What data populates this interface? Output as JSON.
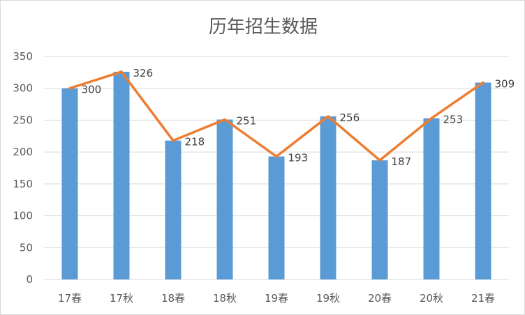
{
  "chart_data": {
    "type": "bar",
    "title": "历年招生数据",
    "categories": [
      "17春",
      "17秋",
      "18春",
      "18秋",
      "19春",
      "19秋",
      "20春",
      "20秋",
      "21春"
    ],
    "series": [
      {
        "type": "bar",
        "values": [
          300,
          326,
          218,
          251,
          193,
          256,
          187,
          253,
          309
        ],
        "color": "#5b9bd5"
      },
      {
        "type": "line",
        "values": [
          300,
          326,
          218,
          251,
          193,
          256,
          187,
          253,
          309
        ],
        "color": "#ed7d31"
      }
    ],
    "data_labels": [
      "300",
      "326",
      "218",
      "251",
      "193",
      "256",
      "187",
      "253",
      "309"
    ],
    "y_ticks": [
      "0",
      "50",
      "100",
      "150",
      "200",
      "250",
      "300",
      "350"
    ],
    "ylim": [
      0,
      350
    ],
    "grid": true,
    "legend": "none"
  }
}
